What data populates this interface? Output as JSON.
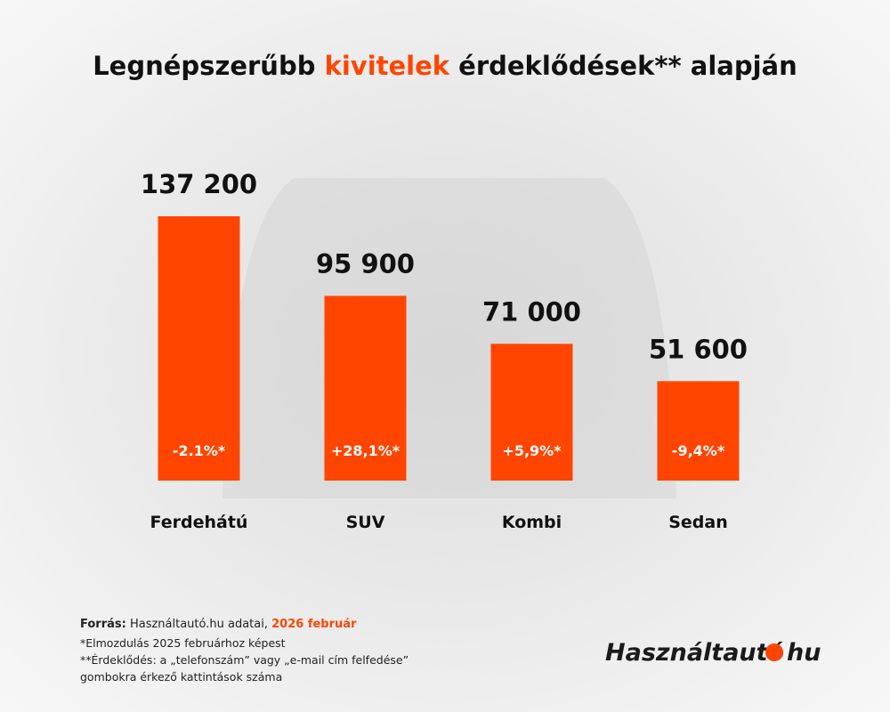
{
  "chart_data": {
    "type": "bar",
    "title_parts": [
      "Legnépszerűbb ",
      "kivitelek",
      " érdeklődések** alapján"
    ],
    "title_highlight_color": "#ff4500",
    "categories": [
      "Ferdehátú",
      "SUV",
      "Kombi",
      "Sedan"
    ],
    "values": [
      137200,
      95900,
      71000,
      51600
    ],
    "value_labels": [
      "137 200",
      "95 900",
      "71 000",
      "51 600"
    ],
    "change_labels": [
      "-2.1%*",
      "+28,1%*",
      "+5,9%*",
      "-9,4%*"
    ],
    "color": "#ff4500",
    "ylim": [
      0,
      150000
    ],
    "source_parts": [
      "Forrás:",
      " Használtautó.hu adatai, ",
      "2026 február"
    ],
    "notes": [
      "*Elmozdulás 2025 februárhoz képest",
      "**Érdeklődés: a „telefonszám” vagy „e-mail cím felfedése”",
      "gombokra érkező kattintások száma"
    ],
    "logo_parts": [
      "Használtautó",
      "hu"
    ]
  }
}
